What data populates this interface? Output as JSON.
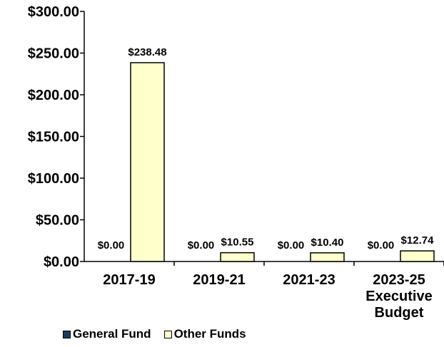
{
  "chart_data": {
    "type": "bar",
    "categories": [
      [
        "2017-19"
      ],
      [
        "2019-21"
      ],
      [
        "2021-23"
      ],
      [
        "2023-25",
        "Executive",
        "Budget"
      ]
    ],
    "series": [
      {
        "name": "General Fund",
        "values": [
          0,
          0,
          0,
          0
        ],
        "labels": [
          "$0.00",
          "$0.00",
          "$0.00",
          "$0.00"
        ],
        "color": "#1F3864"
      },
      {
        "name": "Other Funds",
        "values": [
          238.48,
          10.55,
          10.4,
          12.74
        ],
        "labels": [
          "$238.48",
          "$10.55",
          "$10.40",
          "$12.74"
        ],
        "color": "#FFFFCC"
      }
    ],
    "yticks": [
      "$0.00",
      "$50.00",
      "$100.00",
      "$150.00",
      "$200.00",
      "$250.00",
      "$300.00"
    ],
    "ylim": [
      0,
      300
    ],
    "grid": false,
    "legend_position": "bottom"
  },
  "legend": {
    "general_fund_label": "General Fund",
    "other_funds_label": "Other Funds"
  }
}
